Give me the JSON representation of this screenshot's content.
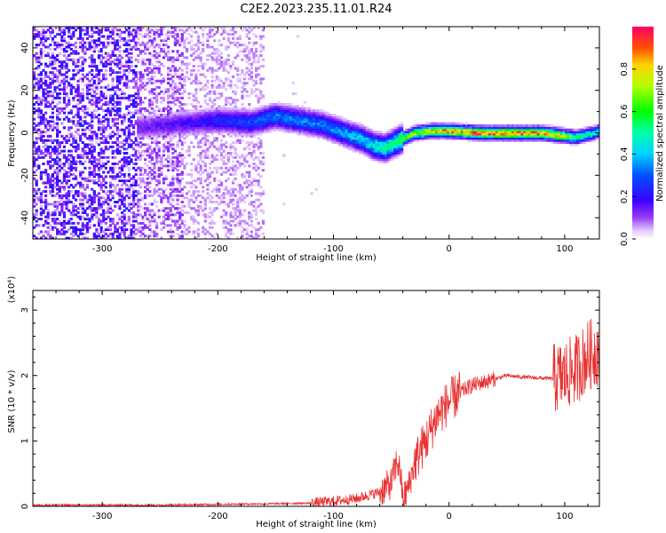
{
  "title": "C2E2.2023.235.11.01.R24",
  "colors": {
    "snr_line": "#e83232",
    "axis": "#000000",
    "background": "#ffffff"
  },
  "chart_data": [
    {
      "type": "heatmap",
      "name": "spectrogram",
      "xlabel": "Height of straight line (km)",
      "ylabel": "Frequency (Hz)",
      "xlim": [
        -360,
        130
      ],
      "ylim": [
        -50,
        50
      ],
      "xticks": [
        -300,
        -200,
        -100,
        0,
        100
      ],
      "yticks": [
        -40,
        -20,
        0,
        20,
        40
      ],
      "colorbar": {
        "label": "Normalized spectral amplitude",
        "range": [
          0,
          1
        ],
        "ticks": [
          0.0,
          0.2,
          0.4,
          0.6,
          0.8
        ],
        "tick_labels": [
          "0.0",
          "0.2",
          "0.4",
          "0.6",
          "0.8"
        ]
      },
      "signal_track": {
        "x": [
          -260,
          -220,
          -200,
          -170,
          -150,
          -130,
          -110,
          -90,
          -75,
          -65,
          -55,
          -45,
          -30,
          -15,
          0,
          30,
          60,
          80,
          95,
          110,
          125,
          130
        ],
        "frequency_hz": [
          3,
          5,
          6,
          5,
          8,
          6,
          4,
          0,
          -3,
          -6,
          -7,
          -4,
          0,
          1,
          1,
          0,
          0,
          0,
          -1,
          -2,
          0,
          1
        ],
        "peak_amplitude": [
          0.15,
          0.2,
          0.25,
          0.3,
          0.35,
          0.35,
          0.35,
          0.4,
          0.45,
          0.5,
          0.55,
          0.6,
          0.75,
          0.85,
          0.9,
          0.95,
          0.95,
          0.95,
          0.85,
          0.6,
          0.5,
          0.5
        ]
      },
      "noise_region_xlim": [
        -360,
        -160
      ]
    },
    {
      "type": "line",
      "name": "snr",
      "xlabel": "Height of straight line (km)",
      "ylabel": "SNR (10 * v/v)",
      "y_multiplier": "(x10⁴)",
      "xlim": [
        -360,
        130
      ],
      "ylim": [
        0,
        3.3
      ],
      "xticks": [
        -300,
        -200,
        -100,
        0,
        100
      ],
      "yticks": [
        0,
        1,
        2,
        3
      ],
      "series": [
        {
          "x": [
            -360,
            -250,
            -200,
            -150,
            -120,
            -100,
            -80,
            -60,
            -50,
            -45,
            -42,
            -40,
            -35,
            -30,
            -25,
            -20,
            -15,
            -10,
            0,
            10,
            20,
            30,
            40,
            50,
            60,
            70,
            80,
            90,
            95,
            100,
            110,
            120,
            130
          ],
          "values": [
            0.02,
            0.02,
            0.03,
            0.04,
            0.05,
            0.08,
            0.12,
            0.22,
            0.35,
            0.7,
            0.5,
            0.1,
            0.3,
            0.65,
            0.85,
            1.0,
            1.2,
            1.4,
            1.6,
            1.75,
            1.85,
            1.9,
            1.95,
            2.0,
            1.98,
            1.97,
            1.96,
            1.95,
            1.97,
            2.0,
            2.1,
            2.3,
            2.4
          ]
        }
      ]
    }
  ]
}
